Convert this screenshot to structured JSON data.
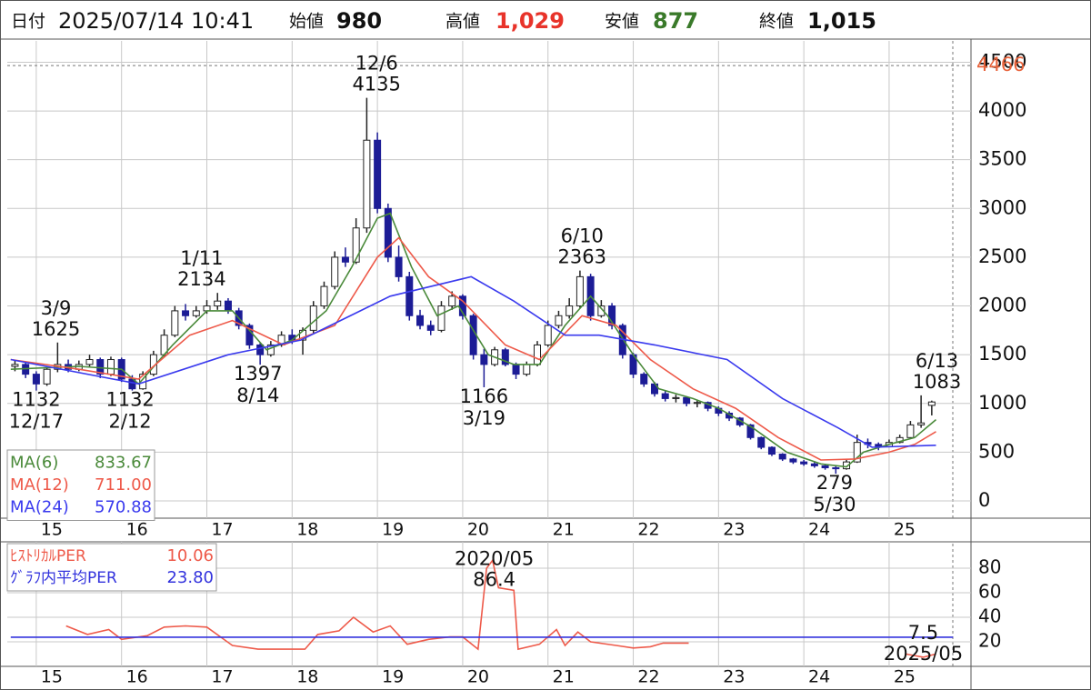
{
  "header": {
    "date_label": "日付",
    "datetime": "2025/07/14 10:41",
    "open_label": "始値",
    "open": "980",
    "high_label": "高値",
    "high": "1,029",
    "low_label": "安値",
    "low": "877",
    "close_label": "終値",
    "close": "1,015"
  },
  "chart_data": [
    {
      "type": "candlestick",
      "xlim": [
        2014.66,
        2025.96
      ],
      "ylim": [
        -177,
        4700
      ],
      "xticks": [
        {
          "value": 2015,
          "label": "15"
        },
        {
          "value": 2016,
          "label": "16"
        },
        {
          "value": 2017,
          "label": "17"
        },
        {
          "value": 2018,
          "label": "18"
        },
        {
          "value": 2019,
          "label": "19"
        },
        {
          "value": 2020,
          "label": "20"
        },
        {
          "value": 2021,
          "label": "21"
        },
        {
          "value": 2022,
          "label": "22"
        },
        {
          "value": 2023,
          "label": "23"
        },
        {
          "value": 2024,
          "label": "24"
        },
        {
          "value": 2025,
          "label": "25"
        }
      ],
      "yticks": [
        0,
        500,
        1000,
        1500,
        2000,
        2500,
        3000,
        3500,
        4000,
        4500
      ],
      "grid": true,
      "reference_line": {
        "value": 4466,
        "color": "#e8623a"
      },
      "candles": {
        "up_color": "#ffffff",
        "down_color": "#1c1c96",
        "x": [
          2014.75,
          2014.875,
          2015,
          2015.125,
          2015.25,
          2015.375,
          2015.5,
          2015.625,
          2015.75,
          2015.875,
          2016,
          2016.125,
          2016.25,
          2016.375,
          2016.5,
          2016.625,
          2016.75,
          2016.875,
          2017,
          2017.125,
          2017.25,
          2017.375,
          2017.5,
          2017.625,
          2017.75,
          2017.875,
          2018,
          2018.125,
          2018.25,
          2018.375,
          2018.5,
          2018.625,
          2018.75,
          2018.875,
          2019,
          2019.125,
          2019.25,
          2019.375,
          2019.5,
          2019.625,
          2019.75,
          2019.875,
          2020,
          2020.125,
          2020.25,
          2020.375,
          2020.5,
          2020.625,
          2020.75,
          2020.875,
          2021,
          2021.125,
          2021.25,
          2021.375,
          2021.5,
          2021.625,
          2021.75,
          2021.875,
          2022,
          2022.125,
          2022.25,
          2022.375,
          2022.5,
          2022.625,
          2022.75,
          2022.875,
          2023,
          2023.125,
          2023.25,
          2023.375,
          2023.5,
          2023.625,
          2023.75,
          2023.875,
          2024,
          2024.125,
          2024.25,
          2024.375,
          2024.5,
          2024.625,
          2024.75,
          2024.875,
          2025,
          2025.125,
          2025.25,
          2025.375,
          2025.5
        ],
        "open": [
          1380,
          1400,
          1300,
          1200,
          1350,
          1400,
          1350,
          1400,
          1450,
          1300,
          1450,
          1250,
          1150,
          1300,
          1500,
          1700,
          1950,
          1900,
          1950,
          2000,
          2050,
          1950,
          1800,
          1600,
          1500,
          1600,
          1700,
          1650,
          1750,
          2000,
          2200,
          2500,
          2450,
          2800,
          3700,
          3000,
          2500,
          2300,
          1900,
          1800,
          1750,
          2000,
          2100,
          1900,
          1500,
          1400,
          1550,
          1400,
          1300,
          1400,
          1600,
          1800,
          1900,
          2000,
          2300,
          1900,
          2000,
          1800,
          1500,
          1300,
          1200,
          1100,
          1050,
          1060,
          1000,
          1010,
          950,
          900,
          850,
          780,
          650,
          550,
          480,
          430,
          400,
          380,
          360,
          340,
          330,
          400,
          600,
          580,
          560,
          600,
          650,
          780,
          980
        ],
        "high": [
          1450,
          1420,
          1330,
          1380,
          1625,
          1450,
          1440,
          1500,
          1470,
          1480,
          1470,
          1290,
          1330,
          1540,
          1760,
          2000,
          2020,
          2000,
          2060,
          2134,
          2080,
          1980,
          1820,
          1620,
          1640,
          1740,
          1760,
          1780,
          2050,
          2250,
          2560,
          2600,
          2900,
          4135,
          3780,
          3050,
          2620,
          2350,
          1960,
          1850,
          2050,
          2150,
          2120,
          1920,
          1560,
          1580,
          1570,
          1420,
          1430,
          1640,
          1850,
          1950,
          2080,
          2363,
          2330,
          2060,
          2030,
          1820,
          1520,
          1320,
          1220,
          1130,
          1090,
          1070,
          1040,
          1020,
          970,
          920,
          860,
          790,
          660,
          560,
          490,
          440,
          420,
          400,
          380,
          360,
          420,
          680,
          640,
          600,
          630,
          680,
          820,
          1083,
          1029
        ],
        "low": [
          1330,
          1260,
          1132,
          1180,
          1320,
          1320,
          1330,
          1380,
          1260,
          1280,
          1220,
          1132,
          1140,
          1280,
          1480,
          1680,
          1850,
          1880,
          1920,
          1960,
          1920,
          1760,
          1560,
          1397,
          1480,
          1580,
          1610,
          1500,
          1720,
          1970,
          2170,
          2400,
          2430,
          2750,
          2950,
          2450,
          2250,
          1850,
          1760,
          1700,
          1730,
          1960,
          1860,
          1450,
          1166,
          1380,
          1380,
          1250,
          1280,
          1380,
          1580,
          1770,
          1870,
          1980,
          1850,
          1880,
          1760,
          1460,
          1260,
          1170,
          1070,
          1020,
          1010,
          970,
          960,
          920,
          870,
          820,
          760,
          630,
          530,
          460,
          410,
          380,
          360,
          340,
          320,
          279,
          320,
          390,
          540,
          520,
          550,
          590,
          640,
          750,
          877
        ],
        "close": [
          1400,
          1300,
          1200,
          1350,
          1400,
          1350,
          1400,
          1450,
          1300,
          1450,
          1250,
          1150,
          1300,
          1500,
          1700,
          1950,
          1900,
          1950,
          2000,
          2050,
          1950,
          1800,
          1600,
          1500,
          1600,
          1700,
          1650,
          1750,
          2000,
          2200,
          2500,
          2450,
          2800,
          3700,
          3000,
          2500,
          2300,
          1900,
          1800,
          1750,
          2000,
          2100,
          1900,
          1500,
          1400,
          1550,
          1400,
          1300,
          1400,
          1600,
          1800,
          1900,
          2000,
          2300,
          1900,
          2000,
          1800,
          1500,
          1300,
          1200,
          1100,
          1050,
          1060,
          1000,
          1010,
          950,
          900,
          850,
          780,
          650,
          550,
          480,
          430,
          400,
          380,
          360,
          340,
          330,
          400,
          600,
          580,
          560,
          600,
          650,
          780,
          800,
          1015
        ]
      },
      "series": [
        {
          "name": "MA(6)",
          "color": "#4a8a3a",
          "legend_value": "833.67",
          "x": [
            2014.7,
            2015.5,
            2016,
            2016.2,
            2016.6,
            2017,
            2017.3,
            2017.7,
            2018,
            2018.4,
            2018.7,
            2019,
            2019.15,
            2019.4,
            2019.7,
            2019.95,
            2020.3,
            2020.6,
            2020.9,
            2021.2,
            2021.5,
            2021.7,
            2022,
            2022.3,
            2022.7,
            2023,
            2023.4,
            2023.8,
            2024.2,
            2024.5,
            2024.7,
            2025,
            2025.3,
            2025.55
          ],
          "values": [
            1350,
            1380,
            1350,
            1200,
            1600,
            1950,
            1950,
            1550,
            1650,
            1950,
            2400,
            2900,
            2950,
            2400,
            1900,
            2000,
            1500,
            1400,
            1400,
            1800,
            2100,
            1900,
            1500,
            1150,
            1050,
            950,
            750,
            500,
            380,
            350,
            500,
            580,
            650,
            834
          ]
        },
        {
          "name": "MA(12)",
          "color": "#ee5a4a",
          "legend_value": "711.00",
          "x": [
            2014.7,
            2015.5,
            2016.2,
            2016.8,
            2017.3,
            2017.9,
            2018.5,
            2019,
            2019.25,
            2019.6,
            2020,
            2020.5,
            2020.9,
            2021.4,
            2021.8,
            2022.2,
            2022.7,
            2023.2,
            2023.7,
            2024.2,
            2024.6,
            2025,
            2025.3,
            2025.55
          ],
          "values": [
            1450,
            1350,
            1250,
            1700,
            1850,
            1600,
            1800,
            2500,
            2700,
            2300,
            2050,
            1600,
            1450,
            1900,
            1800,
            1450,
            1150,
            950,
            650,
            420,
            430,
            500,
            580,
            711
          ]
        },
        {
          "name": "MA(24)",
          "color": "#3a3aee",
          "legend_value": "570.88",
          "x": [
            2014.7,
            2016.2,
            2017.25,
            2018.1,
            2019.15,
            2020.1,
            2020.6,
            2021.2,
            2021.6,
            2022.25,
            2023.1,
            2023.75,
            2024.4,
            2024.8,
            2025.55
          ],
          "values": [
            1450,
            1200,
            1500,
            1650,
            2100,
            2300,
            2050,
            1700,
            1700,
            1600,
            1450,
            1050,
            750,
            550,
            571
          ]
        }
      ],
      "annotations": [
        {
          "date": "3/9",
          "value": 1625,
          "x": 2015.23,
          "position": "above"
        },
        {
          "date": "12/17",
          "value": 1132,
          "x": 2015.0,
          "position": "below"
        },
        {
          "date": "2/12",
          "value": 1132,
          "x": 2016.1,
          "position": "below"
        },
        {
          "date": "1/11",
          "value": 2134,
          "x": 2016.94,
          "position": "above"
        },
        {
          "date": "8/14",
          "value": 1397,
          "x": 2017.6,
          "position": "below"
        },
        {
          "date": "12/6",
          "value": 4135,
          "x": 2018.99,
          "position": "above"
        },
        {
          "date": "3/19",
          "value": 1166,
          "x": 2020.25,
          "position": "below"
        },
        {
          "date": "6/10",
          "value": 2363,
          "x": 2021.4,
          "position": "above"
        },
        {
          "date": "5/30",
          "value": 279,
          "x": 2024.36,
          "position": "below"
        },
        {
          "date": "6/13",
          "value": 1083,
          "x": 2025.56,
          "position": "above"
        }
      ]
    },
    {
      "type": "line",
      "xlim": [
        2014.66,
        2025.96
      ],
      "ylim": [
        0,
        100
      ],
      "xticks": [
        {
          "value": 2015,
          "label": "15"
        },
        {
          "value": 2016,
          "label": "16"
        },
        {
          "value": 2017,
          "label": "17"
        },
        {
          "value": 2018,
          "label": "18"
        },
        {
          "value": 2019,
          "label": "19"
        },
        {
          "value": 2020,
          "label": "20"
        },
        {
          "value": 2021,
          "label": "21"
        },
        {
          "value": 2022,
          "label": "22"
        },
        {
          "value": 2023,
          "label": "23"
        },
        {
          "value": 2024,
          "label": "24"
        },
        {
          "value": 2025,
          "label": "25"
        }
      ],
      "yticks": [
        20,
        40,
        60,
        80
      ],
      "grid": true,
      "series": [
        {
          "name": "ﾋｽﾄﾘｶﾙPER",
          "color": "#ee5a4a",
          "legend_value": "10.06",
          "x": [
            2015.35,
            2015.6,
            2015.85,
            2016,
            2016.3,
            2016.5,
            2016.75,
            2017,
            2017.3,
            2017.6,
            2017.9,
            2018.15,
            2018.3,
            2018.55,
            2018.72,
            2018.95,
            2019.15,
            2019.35,
            2019.6,
            2019.85,
            2020,
            2020.18,
            2020.28,
            2020.35,
            2020.42,
            2020.6,
            2020.65,
            2020.9,
            2021.1,
            2021.2,
            2021.35,
            2021.5,
            2021.8,
            2022,
            2022.2,
            2022.35,
            2022.65,
            2023.9,
            2025.2,
            2025.4,
            2025.55
          ],
          "values": [
            33,
            26,
            30,
            22,
            25,
            32,
            33,
            32,
            17,
            14,
            14,
            14,
            26,
            29,
            40,
            28,
            33,
            18,
            22,
            24,
            24,
            14,
            80,
            86.4,
            64,
            62,
            14,
            18,
            30,
            17,
            28,
            20,
            17,
            15,
            16,
            19,
            19,
            null,
            10,
            7.5,
            10.06
          ]
        },
        {
          "name": "ｸﾞﾗﾌ内平均PER",
          "color": "#3333dd",
          "legend_value": "23.80",
          "x": [
            2014.7,
            2025.75
          ],
          "values": [
            23.8,
            23.8
          ]
        }
      ],
      "annotations": [
        {
          "date": "2020/05",
          "value": 86.4,
          "x": 2020.37,
          "position": "above"
        },
        {
          "date": "2025/05",
          "value": 7.5,
          "x": 2025.4,
          "position": "below"
        }
      ]
    }
  ]
}
